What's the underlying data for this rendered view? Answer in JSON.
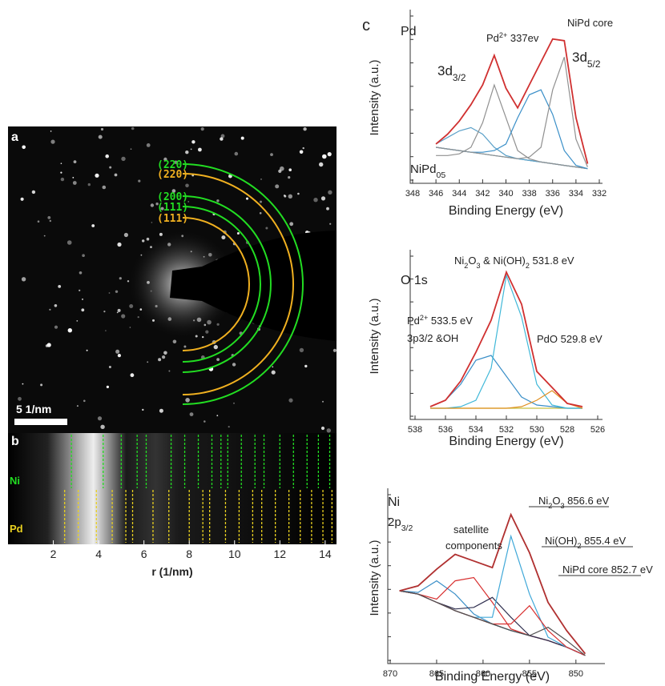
{
  "panel_a": {
    "label": "a",
    "scale_bar": "5 1/nm",
    "rings": [
      {
        "label": "(220)",
        "color": "#22dd22"
      },
      {
        "label": "(220)",
        "color": "#f0b020"
      },
      {
        "label": "(200)",
        "color": "#22dd22"
      },
      {
        "label": "(111)",
        "color": "#22dd22"
      },
      {
        "label": "(111)",
        "color": "#f0b020"
      }
    ]
  },
  "chart_data": [
    {
      "type": "stick",
      "label": "b",
      "xlabel": "r (1/nm)",
      "xlim": [
        0,
        14.5
      ],
      "xticks": [
        2,
        4,
        6,
        8,
        10,
        12,
        14
      ],
      "series": [
        {
          "name": "Ni",
          "color": "#22dd22",
          "x": [
            2.8,
            4.2,
            5.0,
            5.7,
            6.1,
            7.2,
            7.8,
            8.4,
            9.0,
            9.4,
            9.7,
            10.3,
            10.9,
            11.3,
            12.0,
            12.6,
            13.2,
            13.7,
            14.2
          ]
        },
        {
          "name": "Pd",
          "color": "#e8d020",
          "x": [
            2.5,
            3.1,
            3.9,
            4.6,
            5.2,
            5.5,
            6.4,
            7.1,
            8.0,
            8.6,
            8.9,
            9.6,
            10.2,
            10.8,
            11.2,
            11.8,
            12.4,
            12.9,
            13.4,
            13.9,
            14.3
          ]
        }
      ]
    },
    {
      "type": "line",
      "label": "c",
      "title": "Pd",
      "xlabel": "Binding Energy (eV)",
      "ylabel": "Intensity (a.u.)",
      "xlim": [
        348,
        332
      ],
      "xticks": [
        348,
        346,
        344,
        342,
        340,
        338,
        336,
        334,
        332
      ],
      "ylim": [
        0,
        100
      ],
      "x": [
        346,
        345,
        344,
        343,
        342,
        341,
        340,
        339,
        338,
        337,
        336,
        335,
        334,
        333
      ],
      "series": [
        {
          "color": "#3a8fb0",
          "values": [
            20,
            19,
            18,
            17,
            16,
            15,
            14,
            13,
            12,
            11,
            10,
            9,
            8,
            7
          ]
        },
        {
          "color": "#5aa0c8",
          "values": [
            22,
            26,
            30,
            32,
            28,
            20,
            15,
            13,
            12,
            11,
            10,
            9,
            8,
            7
          ]
        },
        {
          "color": "#909090",
          "values": [
            15,
            15,
            16,
            20,
            35,
            58,
            38,
            18,
            13,
            11,
            10,
            9,
            8,
            7
          ]
        },
        {
          "color": "#3a8fc8",
          "values": [
            20,
            19,
            18,
            17,
            17,
            18,
            22,
            38,
            52,
            55,
            40,
            18,
            9,
            7
          ]
        },
        {
          "color": "#909090",
          "values": [
            20,
            19,
            18,
            17,
            16,
            15,
            14,
            13,
            14,
            20,
            55,
            75,
            25,
            8
          ]
        },
        {
          "color": "#d03030",
          "values": [
            22,
            28,
            36,
            46,
            58,
            76,
            56,
            44,
            58,
            72,
            86,
            85,
            38,
            10
          ]
        }
      ],
      "annotations": [
        [
          "NiPd core"
        ],
        [
          "Pd",
          "2+",
          " 337ev"
        ],
        [
          "3d",
          "3/2"
        ],
        [
          "3d",
          "5/2"
        ],
        [
          "NiPd",
          "05"
        ]
      ]
    },
    {
      "type": "line",
      "title": "O 1s",
      "xlabel": "Binding Energy (eV)",
      "ylabel": "Intensity (a.u.)",
      "xlim": [
        538,
        526
      ],
      "xticks": [
        538,
        536,
        534,
        532,
        530,
        528,
        526
      ],
      "ylim": [
        0,
        100
      ],
      "x": [
        537,
        536,
        535,
        534,
        533,
        532,
        531,
        530,
        529,
        528,
        527
      ],
      "series": [
        {
          "color": "#c8c040",
          "values": [
            5,
            5,
            5,
            5,
            5,
            5,
            5,
            5,
            5,
            5,
            5
          ]
        },
        {
          "color": "#3a8fc8",
          "values": [
            6,
            10,
            20,
            35,
            38,
            25,
            12,
            7,
            6,
            5,
            5
          ]
        },
        {
          "color": "#40b8d8",
          "values": [
            5,
            5,
            6,
            10,
            30,
            88,
            62,
            20,
            7,
            5,
            5
          ]
        },
        {
          "color": "#e09020",
          "values": [
            5,
            5,
            5,
            5,
            5,
            5,
            6,
            10,
            16,
            8,
            5
          ]
        },
        {
          "color": "#d03030",
          "values": [
            6,
            10,
            22,
            40,
            60,
            90,
            70,
            28,
            18,
            8,
            6
          ]
        }
      ],
      "annotations": [
        [
          "Ni",
          "2",
          "O",
          "3",
          " & Ni(OH)",
          "2",
          " 531.8 eV"
        ],
        [
          "Pd",
          "2+",
          " 533.5 eV"
        ],
        [
          "3p3/2 &OH"
        ],
        [
          "PdO 529.8 eV"
        ]
      ]
    },
    {
      "type": "line",
      "title": "Ni",
      "xlabel": "Binding Energy (eV)",
      "ylabel": "Intensity (a.u.)",
      "xlim": [
        870,
        848
      ],
      "xticks": [
        870,
        865,
        860,
        855,
        850
      ],
      "ylim": [
        0,
        100
      ],
      "x": [
        869,
        867,
        865,
        863,
        861,
        859,
        857,
        855,
        853,
        851,
        849
      ],
      "series": [
        {
          "color": "#222222",
          "values": [
            42,
            40,
            35,
            30,
            26,
            22,
            18,
            15,
            12,
            8,
            3
          ]
        },
        {
          "color": "#3a8fc8",
          "values": [
            42,
            41,
            48,
            40,
            28,
            22,
            18,
            15,
            12,
            8,
            3
          ]
        },
        {
          "color": "#d83030",
          "values": [
            42,
            40,
            37,
            48,
            50,
            35,
            19,
            15,
            12,
            8,
            3
          ]
        },
        {
          "color": "#303050",
          "values": [
            42,
            40,
            35,
            31,
            32,
            38,
            26,
            15,
            12,
            8,
            3
          ]
        },
        {
          "color": "#40a8d8",
          "values": [
            42,
            40,
            35,
            30,
            26,
            26,
            75,
            40,
            14,
            8,
            3
          ]
        },
        {
          "color": "#d83030",
          "values": [
            42,
            40,
            35,
            30,
            26,
            22,
            22,
            33,
            18,
            8,
            3
          ]
        },
        {
          "color": "#505050",
          "values": [
            42,
            40,
            35,
            30,
            26,
            22,
            18,
            15,
            20,
            12,
            3
          ]
        },
        {
          "color": "#b03030",
          "values": [
            42,
            45,
            55,
            64,
            60,
            56,
            88,
            65,
            35,
            18,
            4
          ]
        }
      ],
      "annotations": [
        [
          "2p",
          "3/2"
        ],
        [
          "satellite"
        ],
        [
          "components"
        ],
        [
          "Ni",
          "2",
          "O",
          "3",
          " 856.6 eV"
        ],
        [
          "Ni(OH)",
          "2",
          " 855.4 eV"
        ],
        [
          "NiPd core 852.7 eV"
        ]
      ]
    }
  ]
}
